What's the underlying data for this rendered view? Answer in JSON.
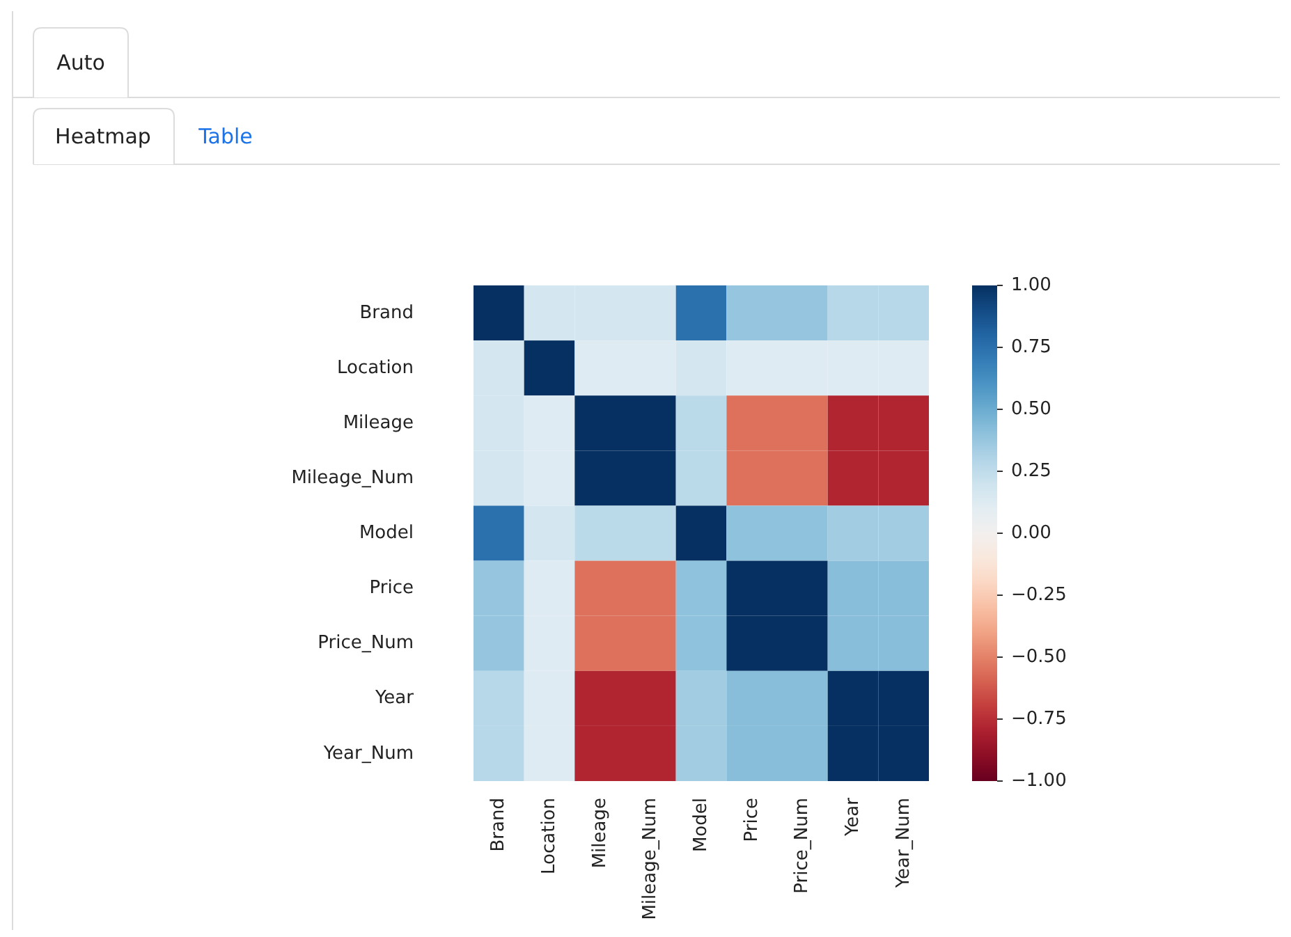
{
  "chart_data": {
    "type": "heatmap",
    "annotations": [
      "Auto",
      "Heatmap",
      "Table"
    ],
    "categories": [
      "Brand",
      "Location",
      "Mileage",
      "Mileage_Num",
      "Model",
      "Price",
      "Price_Num",
      "Year",
      "Year_Num"
    ],
    "y_categories": [
      "Brand",
      "Location",
      "Mileage",
      "Mileage_Num",
      "Model",
      "Price",
      "Price_Num",
      "Year",
      "Year_Num"
    ],
    "cells": [
      [
        1,
        0.17,
        0.17,
        0.17,
        0.75,
        0.38,
        0.38,
        0.28,
        0.28
      ],
      [
        0.17,
        1,
        0.12,
        0.12,
        0.17,
        0.12,
        0.12,
        0.12,
        0.12
      ],
      [
        0.17,
        0.12,
        1,
        1,
        0.27,
        -0.55,
        -0.55,
        -0.78,
        -0.78
      ],
      [
        0.17,
        0.12,
        1,
        1,
        0.27,
        -0.55,
        -0.55,
        -0.78,
        -0.78
      ],
      [
        0.75,
        0.17,
        0.27,
        0.27,
        1,
        0.4,
        0.4,
        0.35,
        0.35
      ],
      [
        0.38,
        0.12,
        -0.55,
        -0.55,
        0.4,
        1,
        1,
        0.42,
        0.42
      ],
      [
        0.38,
        0.12,
        -0.55,
        -0.55,
        0.4,
        1,
        1,
        0.42,
        0.42
      ],
      [
        0.28,
        0.12,
        -0.78,
        -0.78,
        0.35,
        0.42,
        0.42,
        1,
        1
      ],
      [
        0.28,
        0.12,
        -0.78,
        -0.78,
        0.35,
        0.42,
        0.42,
        1,
        1
      ]
    ],
    "clim": [
      -1,
      1
    ],
    "cticks": [
      {
        "value": 1,
        "label": "1.00"
      },
      {
        "value": 0.75,
        "label": "0.75"
      },
      {
        "value": 0.5,
        "label": "0.50"
      },
      {
        "value": 0.25,
        "label": "0.25"
      },
      {
        "value": 0,
        "label": "0.00"
      },
      {
        "value": -0.25,
        "label": "−0.25"
      },
      {
        "value": -0.5,
        "label": "−0.50"
      },
      {
        "value": -0.75,
        "label": "−0.75"
      },
      {
        "value": -1,
        "label": "−1.00"
      }
    ]
  }
}
